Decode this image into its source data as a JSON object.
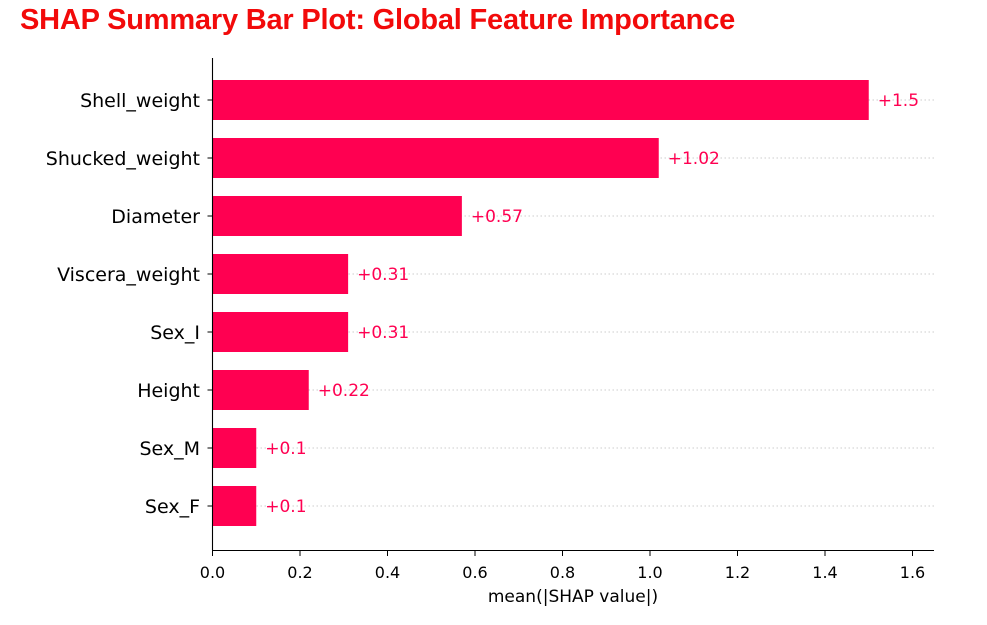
{
  "page_title": "SHAP Summary Bar Plot: Global Feature Importance",
  "chart_data": {
    "type": "bar",
    "orientation": "horizontal",
    "title": "",
    "xlabel": "mean(|SHAP value|)",
    "ylabel": "",
    "xlim": [
      0,
      1.65
    ],
    "xticks": [
      0.0,
      0.2,
      0.4,
      0.6,
      0.8,
      1.0,
      1.2,
      1.4,
      1.6
    ],
    "xtick_labels": [
      "0.0",
      "0.2",
      "0.4",
      "0.6",
      "0.8",
      "1.0",
      "1.2",
      "1.4",
      "1.6"
    ],
    "categories": [
      "Shell_weight",
      "Shucked_weight",
      "Diameter",
      "Viscera_weight",
      "Sex_I",
      "Height",
      "Sex_M",
      "Sex_F"
    ],
    "values": [
      1.5,
      1.02,
      0.57,
      0.31,
      0.31,
      0.22,
      0.1,
      0.1
    ],
    "value_labels": [
      "+1.5",
      "+1.02",
      "+0.57",
      "+0.31",
      "+0.31",
      "+0.22",
      "+0.1",
      "+0.1"
    ],
    "grid": "dotted horizontal guide lines at each bar",
    "bar_color": "#ff0051",
    "label_color": "#ff0051",
    "title_color": "#f20a0a"
  }
}
